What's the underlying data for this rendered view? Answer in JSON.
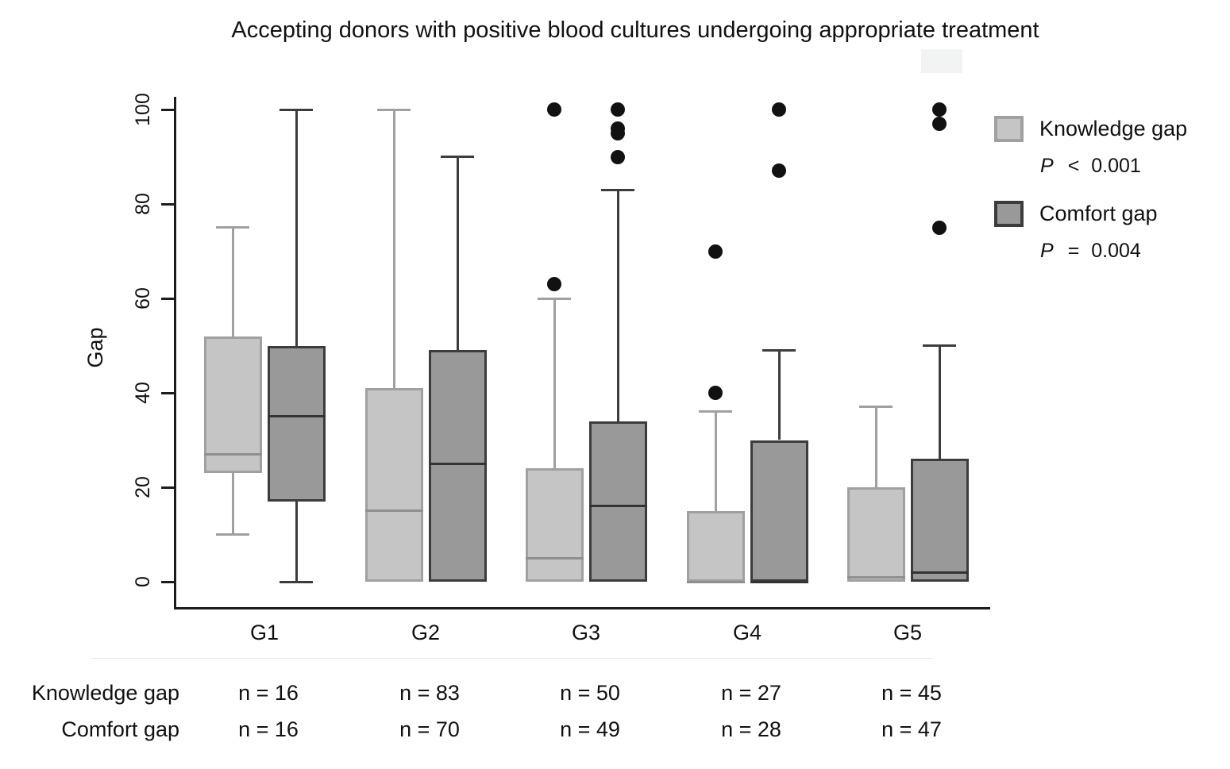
{
  "title": "Accepting donors with positive blood cultures undergoing appropriate treatment",
  "chart_data": {
    "type": "boxplot",
    "title": "Accepting donors with positive blood cultures undergoing appropriate treatment",
    "xlabel": "",
    "ylabel": "Gap",
    "ylim": [
      0,
      100
    ],
    "yticks": [
      0,
      20,
      40,
      60,
      80,
      100
    ],
    "grid": false,
    "legend_position": "right",
    "outlier_color": "#111111",
    "categories": [
      "G1",
      "G2",
      "G3",
      "G4",
      "G5"
    ],
    "series": [
      {
        "name": "Knowledge gap",
        "key": "knowledge",
        "p_symbol": "P",
        "p_rest": "< 0.001",
        "n": [
          16,
          83,
          50,
          27,
          45
        ],
        "colors": {
          "fill": "#c5c5c5",
          "stroke": "#a0a0a0",
          "median": "#8f8f8f"
        },
        "stats": [
          {
            "low": 10,
            "q1": 23,
            "median": 27,
            "q3": 52,
            "high": 75,
            "outliers": []
          },
          {
            "low": 0,
            "q1": 0,
            "median": 15,
            "q3": 41,
            "high": 100,
            "outliers": []
          },
          {
            "low": 0,
            "q1": 0,
            "median": 5,
            "q3": 24,
            "high": 60,
            "outliers": [
              63,
              100
            ]
          },
          {
            "low": 0,
            "q1": 0,
            "median": 0,
            "q3": 15,
            "high": 36,
            "outliers": [
              40,
              70
            ]
          },
          {
            "low": 0,
            "q1": 0,
            "median": 1,
            "q3": 20,
            "high": 37,
            "outliers": []
          }
        ]
      },
      {
        "name": "Comfort gap",
        "key": "comfort",
        "p_symbol": "P",
        "p_rest": "= 0.004",
        "n": [
          16,
          70,
          49,
          28,
          47
        ],
        "colors": {
          "fill": "#999999",
          "stroke": "#3c3c3c",
          "median": "#333333"
        },
        "stats": [
          {
            "low": 0,
            "q1": 17,
            "median": 35,
            "q3": 50,
            "high": 100,
            "outliers": []
          },
          {
            "low": 0,
            "q1": 0,
            "median": 25,
            "q3": 49,
            "high": 90,
            "outliers": []
          },
          {
            "low": 0,
            "q1": 0,
            "median": 16,
            "q3": 34,
            "high": 83,
            "outliers": [
              90,
              95,
              96,
              100
            ]
          },
          {
            "low": 0,
            "q1": 0,
            "median": 0,
            "q3": 30,
            "high": 49,
            "outliers": [
              87,
              100
            ]
          },
          {
            "low": 0,
            "q1": 0,
            "median": 2,
            "q3": 26,
            "high": 50,
            "outliers": [
              75,
              97,
              100
            ]
          }
        ]
      }
    ]
  },
  "table": {
    "rows": [
      {
        "label": "Knowledge gap",
        "values": [
          "n = 16",
          "n = 83",
          "n = 50",
          "n = 27",
          "n = 45"
        ]
      },
      {
        "label": "Comfort gap",
        "values": [
          "n = 16",
          "n = 70",
          "n = 49",
          "n = 28",
          "n = 47"
        ]
      }
    ]
  }
}
